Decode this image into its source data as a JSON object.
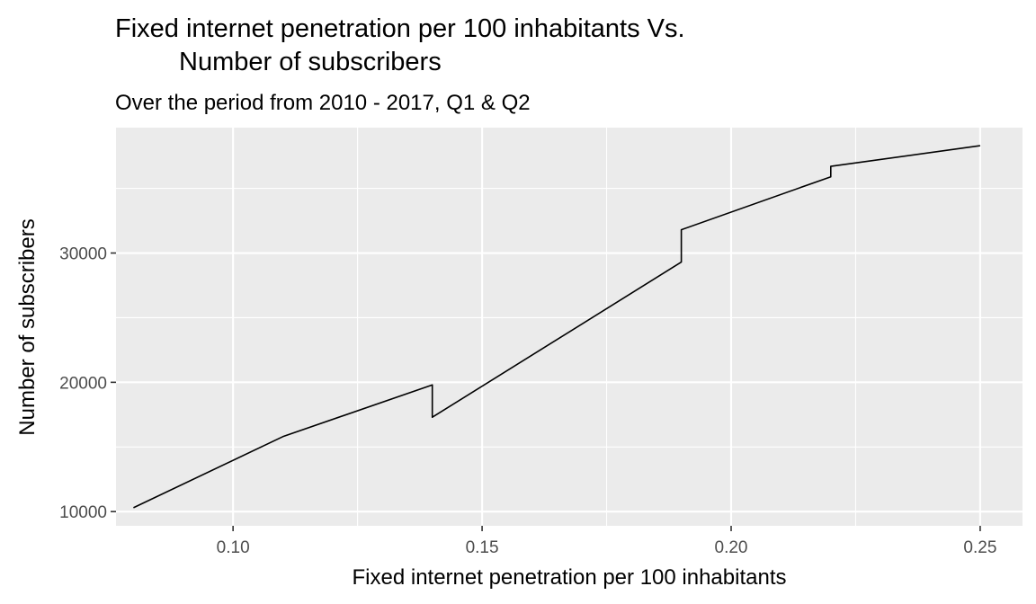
{
  "chart_data": {
    "type": "line",
    "title_lines": [
      "Fixed internet penetration per 100 inhabitants Vs.",
      "Number of subscribers"
    ],
    "subtitle": "Over the period from 2010 - 2017, Q1 & Q2",
    "xlabel": "Fixed internet penetration per 100 inhabitants",
    "ylabel": "Number of subscribers",
    "xlim": [
      0.0765,
      0.2585
    ],
    "ylim": [
      8900,
      39700
    ],
    "x_ticks": [
      0.1,
      0.15,
      0.2,
      0.25
    ],
    "x_tick_labels": [
      "0.10",
      "0.15",
      "0.20",
      "0.25"
    ],
    "y_ticks": [
      10000,
      20000,
      30000
    ],
    "y_tick_labels": [
      "10000",
      "20000",
      "30000"
    ],
    "grid": true,
    "background": "#ebebeb",
    "line_color": "#000000",
    "series": [
      {
        "x": [
          0.08,
          0.11,
          0.14,
          0.14,
          0.19,
          0.19,
          0.22,
          0.22,
          0.25
        ],
        "y": [
          10300,
          15800,
          19800,
          17300,
          29300,
          31800,
          35900,
          36700,
          38300
        ]
      }
    ]
  }
}
